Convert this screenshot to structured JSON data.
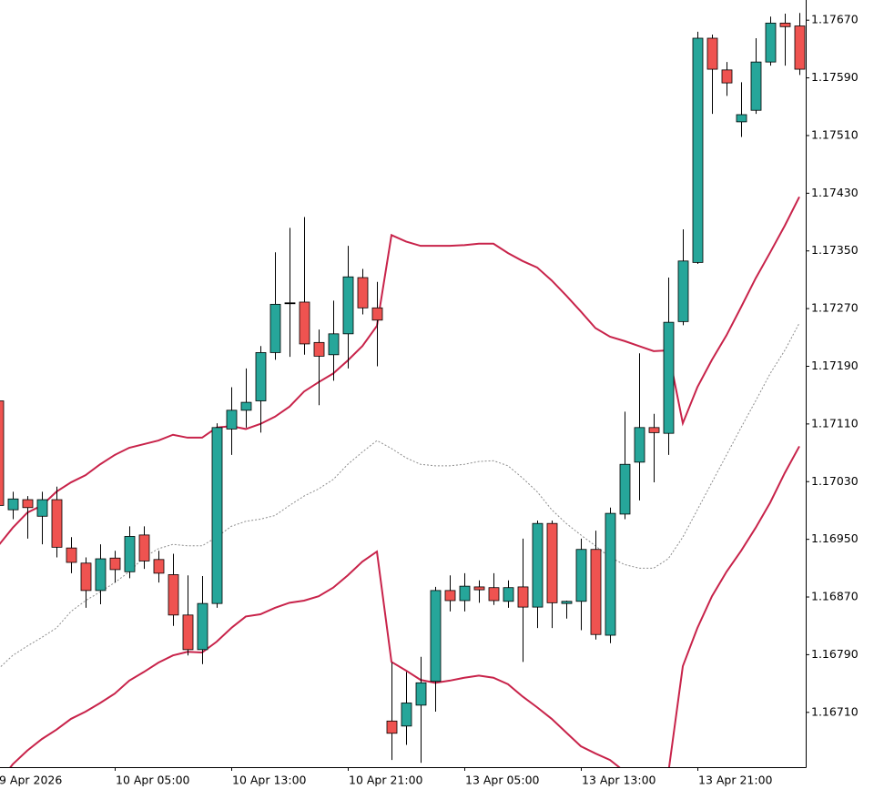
{
  "chart_data": {
    "type": "candlestick",
    "categories": [
      "9 Apr 2026",
      null,
      null,
      null,
      null,
      null,
      null,
      null,
      "10 Apr 05:00",
      null,
      null,
      null,
      null,
      null,
      null,
      null,
      "10 Apr 13:00",
      null,
      null,
      null,
      null,
      null,
      null,
      null,
      "10 Apr 21:00",
      null,
      null,
      null,
      null,
      null,
      null,
      null,
      "13 Apr 05:00",
      null,
      null,
      null,
      null,
      null,
      null,
      null,
      "13 Apr 13:00",
      null,
      null,
      null,
      null,
      null,
      null,
      null,
      "13 Apr 21:00",
      null,
      null,
      null,
      null,
      null,
      null,
      null
    ],
    "open": [
      1.17142,
      1.16991,
      1.17005,
      1.16982,
      1.17005,
      1.16938,
      1.16917,
      1.16879,
      1.16924,
      1.16905,
      1.16956,
      1.16922,
      1.16901,
      1.16845,
      1.16797,
      1.16861,
      1.17103,
      1.17129,
      1.17142,
      1.17209,
      1.17278,
      1.17279,
      1.17223,
      1.17206,
      1.17235,
      1.17313,
      1.17271,
      1.16698,
      1.16691,
      1.1672,
      1.16753,
      1.16879,
      1.16865,
      1.16884,
      1.16883,
      1.16864,
      1.16884,
      1.16856,
      1.16972,
      1.16861,
      1.16864,
      1.16936,
      1.16817,
      1.16985,
      1.17057,
      1.17105,
      1.17097,
      1.17252,
      1.17334,
      1.17645,
      1.17601,
      1.17529,
      1.17545,
      1.17612,
      1.17666,
      1.17662
    ],
    "high": [
      1.17142,
      1.17016,
      1.1701,
      1.17016,
      1.17023,
      1.16953,
      1.16925,
      1.16943,
      1.16934,
      1.16968,
      1.16968,
      1.16934,
      1.1693,
      1.169,
      1.16899,
      1.17111,
      1.17161,
      1.17187,
      1.17218,
      1.17348,
      1.17382,
      1.17397,
      1.17241,
      1.17281,
      1.17357,
      1.17325,
      1.17307,
      1.16779,
      1.16766,
      1.16787,
      1.16884,
      1.169,
      1.16903,
      1.16893,
      1.16903,
      1.16893,
      1.16951,
      1.16976,
      1.16976,
      1.16865,
      1.16951,
      1.16962,
      1.16994,
      1.17127,
      1.17208,
      1.17124,
      1.17313,
      1.1738,
      1.17654,
      1.1765,
      1.17612,
      1.17584,
      1.17645,
      1.17675,
      1.17679,
      1.1768
    ],
    "low": [
      1.16991,
      1.16978,
      1.16951,
      1.16943,
      1.16925,
      1.16903,
      1.16855,
      1.1686,
      1.1689,
      1.16896,
      1.16909,
      1.1689,
      1.1683,
      1.16789,
      1.16777,
      1.16855,
      1.17067,
      1.17105,
      1.17098,
      1.17199,
      1.17203,
      1.17206,
      1.17136,
      1.1717,
      1.17187,
      1.17262,
      1.1719,
      1.16644,
      1.16665,
      1.1664,
      1.16711,
      1.1685,
      1.1685,
      1.16862,
      1.16859,
      1.16855,
      1.1678,
      1.16827,
      1.16827,
      1.1684,
      1.16824,
      1.16811,
      1.16806,
      1.16978,
      1.17004,
      1.17029,
      1.17067,
      1.17247,
      1.17332,
      1.1754,
      1.17565,
      1.17508,
      1.1754,
      1.17607,
      1.17607,
      1.17594
    ],
    "close": [
      1.16997,
      1.17006,
      1.16994,
      1.17005,
      1.16939,
      1.16918,
      1.16879,
      1.16923,
      1.16908,
      1.16954,
      1.1692,
      1.16903,
      1.16845,
      1.16797,
      1.16861,
      1.17105,
      1.17129,
      1.1714,
      1.17209,
      1.17276,
      1.17278,
      1.17221,
      1.17204,
      1.17235,
      1.17314,
      1.17271,
      1.17254,
      1.16681,
      1.16723,
      1.16751,
      1.16879,
      1.16865,
      1.16885,
      1.1688,
      1.16865,
      1.16883,
      1.16856,
      1.16972,
      1.16862,
      1.16864,
      1.16936,
      1.16818,
      1.16986,
      1.17054,
      1.17105,
      1.17098,
      1.17251,
      1.17336,
      1.17645,
      1.17602,
      1.17583,
      1.17539,
      1.17612,
      1.17666,
      1.17661,
      1.17602
    ],
    "up_color": "#26a69a",
    "down_color": "#ef5350",
    "wick_color": "#000000",
    "bands": {
      "color": "#c8234a",
      "middle_color": "#8c8c8c",
      "upper": [
        1.16941,
        1.16966,
        1.16987,
        1.16997,
        1.17016,
        1.17029,
        1.17039,
        1.17054,
        1.17067,
        1.17077,
        1.17082,
        1.17087,
        1.17095,
        1.17091,
        1.17091,
        1.17105,
        1.17107,
        1.17103,
        1.1711,
        1.1712,
        1.17134,
        1.17155,
        1.17168,
        1.1718,
        1.17198,
        1.17218,
        1.17246,
        1.17372,
        1.17363,
        1.17357,
        1.17357,
        1.17357,
        1.17358,
        1.1736,
        1.1736,
        1.17347,
        1.17336,
        1.17327,
        1.17309,
        1.17288,
        1.17266,
        1.17243,
        1.17231,
        1.17225,
        1.17218,
        1.17211,
        1.17212,
        1.17111,
        1.17161,
        1.17199,
        1.17233,
        1.17272,
        1.17312,
        1.17348,
        1.17385,
        1.17425
      ],
      "middle": [
        1.1677,
        1.16789,
        1.16802,
        1.16814,
        1.16827,
        1.1685,
        1.16865,
        1.16877,
        1.1689,
        1.16905,
        1.16925,
        1.16937,
        1.16943,
        1.16941,
        1.16941,
        1.16953,
        1.16968,
        1.16975,
        1.16978,
        1.16983,
        1.16997,
        1.1701,
        1.1702,
        1.17033,
        1.17054,
        1.17071,
        1.17087,
        1.17076,
        1.17063,
        1.17054,
        1.17052,
        1.17052,
        1.17054,
        1.17058,
        1.17059,
        1.17052,
        1.17035,
        1.17016,
        1.16991,
        1.16972,
        1.16956,
        1.16941,
        1.16925,
        1.16915,
        1.1691,
        1.1691,
        1.16923,
        1.16953,
        1.16991,
        1.17029,
        1.17067,
        1.17105,
        1.17142,
        1.1718,
        1.17212,
        1.1725
      ],
      "lower": [
        1.16612,
        1.16638,
        1.16657,
        1.16673,
        1.16686,
        1.16701,
        1.16711,
        1.16723,
        1.16736,
        1.16754,
        1.16766,
        1.16779,
        1.16789,
        1.16794,
        1.16793,
        1.16808,
        1.16827,
        1.16843,
        1.16846,
        1.16855,
        1.16862,
        1.16865,
        1.16871,
        1.16883,
        1.169,
        1.16919,
        1.16933,
        1.1678,
        1.16768,
        1.16755,
        1.16751,
        1.16754,
        1.16758,
        1.16761,
        1.16758,
        1.16749,
        1.16732,
        1.16717,
        1.16701,
        1.16682,
        1.16663,
        1.16653,
        1.16644,
        1.16628,
        1.16612,
        1.16606,
        1.16625,
        1.16774,
        1.16827,
        1.16871,
        1.16905,
        1.16934,
        1.16966,
        1.17001,
        1.17042,
        1.17079
      ]
    },
    "ylim": [
      1.16634,
      1.17698
    ],
    "yticks": [
      {
        "value": 1.1671,
        "label": "1.16710"
      },
      {
        "value": 1.1679,
        "label": "1.16790"
      },
      {
        "value": 1.1687,
        "label": "1.16870"
      },
      {
        "value": 1.1695,
        "label": "1.16950"
      },
      {
        "value": 1.1703,
        "label": "1.17030"
      },
      {
        "value": 1.1711,
        "label": "1.17110"
      },
      {
        "value": 1.1719,
        "label": "1.17190"
      },
      {
        "value": 1.1727,
        "label": "1.17270"
      },
      {
        "value": 1.1735,
        "label": "1.17350"
      },
      {
        "value": 1.1743,
        "label": "1.17430"
      },
      {
        "value": 1.1751,
        "label": "1.17510"
      },
      {
        "value": 1.1759,
        "label": "1.17590"
      },
      {
        "value": 1.1767,
        "label": "1.17670"
      }
    ],
    "grid": false
  }
}
